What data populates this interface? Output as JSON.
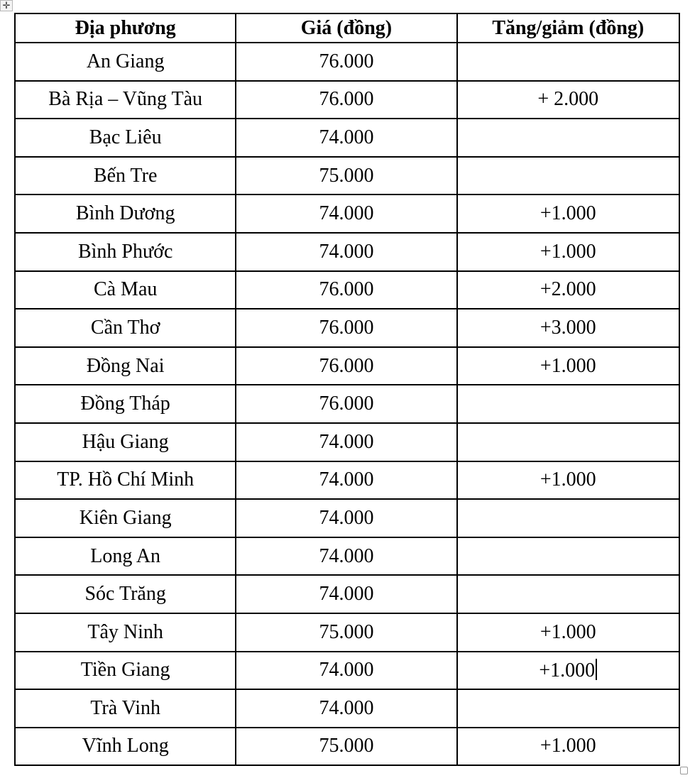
{
  "table": {
    "headers": [
      "Địa phương",
      "Giá (đồng)",
      "Tăng/giảm (đồng)"
    ],
    "rows": [
      [
        "An Giang",
        "76.000",
        ""
      ],
      [
        "Bà Rịa – Vũng Tàu",
        "76.000",
        "+ 2.000"
      ],
      [
        "Bạc Liêu",
        "74.000",
        ""
      ],
      [
        "Bến Tre",
        "75.000",
        ""
      ],
      [
        "Bình Dương",
        "74.000",
        "+1.000"
      ],
      [
        "Bình Phước",
        "74.000",
        "+1.000"
      ],
      [
        "Cà Mau",
        "76.000",
        "+2.000"
      ],
      [
        "Cần Thơ",
        "76.000",
        "+3.000"
      ],
      [
        "Đồng Nai",
        "76.000",
        "+1.000"
      ],
      [
        "Đồng Tháp",
        "76.000",
        ""
      ],
      [
        "Hậu Giang",
        "74.000",
        ""
      ],
      [
        "TP. Hồ Chí Minh",
        "74.000",
        "+1.000"
      ],
      [
        "Kiên Giang",
        "74.000",
        ""
      ],
      [
        "Long An",
        "74.000",
        ""
      ],
      [
        "Sóc Trăng",
        "74.000",
        ""
      ],
      [
        "Tây Ninh",
        "75.000",
        "+1.000"
      ],
      [
        "Tiền Giang",
        "74.000",
        "+1.000"
      ],
      [
        "Trà Vinh",
        "74.000",
        ""
      ],
      [
        "Vĩnh Long",
        "75.000",
        "+1.000"
      ]
    ]
  },
  "icons": {
    "move_handle": "move-arrows-icon",
    "resize_handle": "resize-square-icon"
  }
}
